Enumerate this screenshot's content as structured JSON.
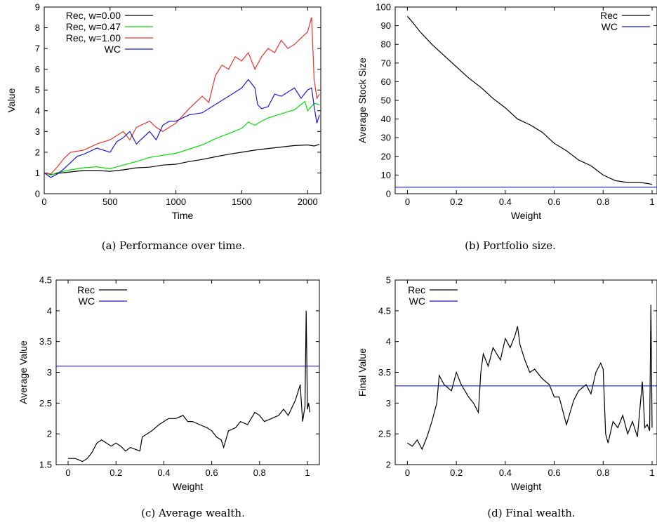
{
  "chart_data": [
    {
      "id": "a",
      "type": "line",
      "caption": "(a)  Performance over time.",
      "xlabel": "Time",
      "ylabel": "Value",
      "xlim": [
        0,
        2100
      ],
      "ylim": [
        0,
        9
      ],
      "xticks": [
        0,
        500,
        1000,
        1500,
        2000
      ],
      "yticks": [
        0,
        1,
        2,
        3,
        4,
        5,
        6,
        7,
        8,
        9
      ],
      "legend": "top-left",
      "series": [
        {
          "name": "Rec, w=0.00",
          "color": "#000000",
          "x": [
            0,
            50,
            100,
            200,
            300,
            400,
            500,
            600,
            700,
            800,
            900,
            1000,
            1100,
            1200,
            1300,
            1400,
            1500,
            1600,
            1700,
            1800,
            1900,
            2000,
            2050,
            2090
          ],
          "y": [
            1.0,
            0.92,
            0.98,
            1.05,
            1.12,
            1.12,
            1.08,
            1.15,
            1.25,
            1.28,
            1.38,
            1.42,
            1.55,
            1.65,
            1.78,
            1.9,
            2.0,
            2.1,
            2.18,
            2.25,
            2.32,
            2.35,
            2.3,
            2.38
          ]
        },
        {
          "name": "Rec, w=0.47",
          "color": "#00e000",
          "x": [
            0,
            50,
            100,
            200,
            300,
            400,
            500,
            600,
            700,
            800,
            900,
            1000,
            1100,
            1200,
            1300,
            1400,
            1500,
            1550,
            1600,
            1650,
            1700,
            1800,
            1900,
            1980,
            2000,
            2050,
            2090
          ],
          "y": [
            1.0,
            0.9,
            1.02,
            1.15,
            1.25,
            1.3,
            1.2,
            1.38,
            1.55,
            1.75,
            1.85,
            1.95,
            2.15,
            2.35,
            2.65,
            2.9,
            3.15,
            3.45,
            3.3,
            3.5,
            3.65,
            3.85,
            4.05,
            4.45,
            4.0,
            4.35,
            4.3
          ]
        },
        {
          "name": "Rec, w=1.00",
          "color": "#e8332b",
          "x": [
            0,
            50,
            100,
            150,
            200,
            300,
            400,
            500,
            600,
            650,
            700,
            800,
            850,
            900,
            950,
            1000,
            1100,
            1200,
            1250,
            1300,
            1350,
            1400,
            1450,
            1500,
            1550,
            1600,
            1650,
            1700,
            1750,
            1800,
            1850,
            1900,
            1950,
            2000,
            2030,
            2050,
            2070,
            2090
          ],
          "y": [
            1.0,
            0.95,
            1.3,
            1.7,
            2.0,
            2.1,
            2.4,
            2.6,
            3.0,
            2.6,
            3.2,
            3.5,
            3.2,
            3.0,
            3.2,
            3.4,
            4.1,
            4.7,
            4.4,
            5.7,
            6.2,
            6.0,
            6.6,
            6.4,
            6.8,
            6.0,
            6.6,
            7.0,
            6.8,
            7.4,
            7.0,
            7.2,
            7.5,
            7.8,
            8.5,
            5.5,
            4.6,
            4.8
          ]
        },
        {
          "name": "WC",
          "color": "#1a1ad8",
          "x": [
            0,
            50,
            100,
            150,
            200,
            250,
            300,
            400,
            500,
            550,
            600,
            650,
            700,
            800,
            850,
            900,
            950,
            1000,
            1100,
            1200,
            1300,
            1400,
            1500,
            1550,
            1600,
            1620,
            1650,
            1700,
            1750,
            1800,
            1850,
            1900,
            1950,
            2000,
            2030,
            2050,
            2070,
            2090
          ],
          "y": [
            1.0,
            0.78,
            0.95,
            1.2,
            1.5,
            1.8,
            1.9,
            2.2,
            2.0,
            2.5,
            2.7,
            3.0,
            2.4,
            3.0,
            2.6,
            3.3,
            3.5,
            3.5,
            3.8,
            3.9,
            4.3,
            4.7,
            5.1,
            5.5,
            5.1,
            4.3,
            4.1,
            4.2,
            4.8,
            4.7,
            4.9,
            5.1,
            4.6,
            5.0,
            5.1,
            4.2,
            3.4,
            3.8
          ]
        }
      ]
    },
    {
      "id": "b",
      "type": "line",
      "caption": "(b)  Portfolio size.",
      "xlabel": "Weight",
      "ylabel": "Average Stock Size",
      "xlim": [
        -0.05,
        1.02
      ],
      "ylim": [
        0,
        100
      ],
      "xticks": [
        0,
        0.2,
        0.4,
        0.6,
        0.8,
        1
      ],
      "xtick_labels": [
        "0",
        "0.2",
        "0.4",
        "0.6",
        "0.8",
        "1"
      ],
      "yticks": [
        0,
        10,
        20,
        30,
        40,
        50,
        60,
        70,
        80,
        90,
        100
      ],
      "legend": "top-right",
      "series": [
        {
          "name": "Rec",
          "color": "#000000",
          "x": [
            0,
            0.02,
            0.05,
            0.1,
            0.15,
            0.2,
            0.25,
            0.3,
            0.35,
            0.4,
            0.45,
            0.5,
            0.55,
            0.6,
            0.65,
            0.7,
            0.75,
            0.8,
            0.85,
            0.9,
            0.95,
            0.98,
            1.0
          ],
          "y": [
            95,
            92,
            87,
            80,
            74,
            68,
            62,
            57,
            51,
            46,
            40,
            37,
            33,
            27,
            23,
            18,
            15,
            10,
            7,
            6,
            6,
            5.5,
            5
          ]
        },
        {
          "name": "WC",
          "color": "#1a1ad8",
          "x": [
            -0.05,
            1.02
          ],
          "y": [
            3.5,
            3.5
          ]
        }
      ]
    },
    {
      "id": "c",
      "type": "line",
      "caption": "(c)  Average wealth.",
      "xlabel": "Weight",
      "ylabel": "Average Value",
      "xlim": [
        -0.05,
        1.05
      ],
      "ylim": [
        1.5,
        4.5
      ],
      "xticks": [
        0,
        0.2,
        0.4,
        0.6,
        0.8,
        1
      ],
      "xtick_labels": [
        "0",
        "0.2",
        "0.4",
        "0.6",
        "0.8",
        "1"
      ],
      "yticks": [
        1.5,
        2,
        2.5,
        3,
        3.5,
        4,
        4.5
      ],
      "ytick_labels": [
        "1.5",
        "2",
        "2.5",
        "3",
        "3.5",
        "4",
        "4.5"
      ],
      "legend": "top-left",
      "series": [
        {
          "name": "Rec",
          "color": "#000000",
          "x": [
            0,
            0.03,
            0.06,
            0.08,
            0.1,
            0.12,
            0.14,
            0.16,
            0.18,
            0.2,
            0.22,
            0.24,
            0.26,
            0.28,
            0.3,
            0.31,
            0.33,
            0.35,
            0.38,
            0.4,
            0.42,
            0.45,
            0.48,
            0.5,
            0.52,
            0.55,
            0.58,
            0.6,
            0.62,
            0.64,
            0.65,
            0.67,
            0.7,
            0.72,
            0.75,
            0.78,
            0.8,
            0.82,
            0.85,
            0.88,
            0.9,
            0.92,
            0.95,
            0.97,
            0.98,
            0.99,
            0.995,
            1.0,
            1.005,
            1.01
          ],
          "y": [
            1.6,
            1.6,
            1.55,
            1.6,
            1.7,
            1.85,
            1.9,
            1.85,
            1.8,
            1.85,
            1.8,
            1.72,
            1.78,
            1.75,
            1.72,
            1.95,
            2.0,
            2.05,
            2.15,
            2.2,
            2.25,
            2.25,
            2.3,
            2.2,
            2.2,
            2.15,
            2.1,
            2.05,
            1.95,
            1.9,
            1.78,
            2.05,
            2.1,
            2.2,
            2.15,
            2.35,
            2.3,
            2.2,
            2.25,
            2.3,
            2.4,
            2.3,
            2.55,
            2.8,
            2.2,
            2.45,
            4.0,
            2.4,
            2.5,
            2.35
          ]
        },
        {
          "name": "WC",
          "color": "#1a1ad8",
          "x": [
            -0.05,
            1.05
          ],
          "y": [
            3.1,
            3.1
          ]
        }
      ]
    },
    {
      "id": "d",
      "type": "line",
      "caption": "(d)  Final wealth.",
      "xlabel": "Weight",
      "ylabel": "Final Value",
      "xlim": [
        -0.05,
        1.02
      ],
      "ylim": [
        2,
        5
      ],
      "xticks": [
        0,
        0.2,
        0.4,
        0.6,
        0.8,
        1
      ],
      "xtick_labels": [
        "0",
        "0.2",
        "0.4",
        "0.6",
        "0.8",
        "1"
      ],
      "yticks": [
        2,
        2.5,
        3,
        3.5,
        4,
        4.5,
        5
      ],
      "ytick_labels": [
        "2",
        "2.5",
        "3",
        "3.5",
        "4",
        "4.5",
        "5"
      ],
      "legend": "top-left",
      "series": [
        {
          "name": "Rec",
          "color": "#000000",
          "x": [
            0,
            0.02,
            0.04,
            0.06,
            0.08,
            0.1,
            0.12,
            0.13,
            0.15,
            0.18,
            0.2,
            0.22,
            0.25,
            0.27,
            0.29,
            0.3,
            0.31,
            0.33,
            0.35,
            0.38,
            0.4,
            0.42,
            0.44,
            0.45,
            0.46,
            0.48,
            0.5,
            0.52,
            0.55,
            0.58,
            0.6,
            0.62,
            0.65,
            0.68,
            0.7,
            0.73,
            0.75,
            0.77,
            0.79,
            0.8,
            0.81,
            0.82,
            0.84,
            0.86,
            0.88,
            0.9,
            0.92,
            0.94,
            0.95,
            0.96,
            0.97,
            0.98,
            0.99,
            0.995,
            1.0
          ],
          "y": [
            2.35,
            2.3,
            2.4,
            2.25,
            2.45,
            2.7,
            3.0,
            3.45,
            3.3,
            3.2,
            3.5,
            3.3,
            3.1,
            3.0,
            2.85,
            3.5,
            3.8,
            3.6,
            3.9,
            3.7,
            4.05,
            3.9,
            4.1,
            4.25,
            3.95,
            3.7,
            3.5,
            3.55,
            3.4,
            3.3,
            3.1,
            3.1,
            2.65,
            3.05,
            3.2,
            3.3,
            3.15,
            3.5,
            3.65,
            3.55,
            2.5,
            2.35,
            2.7,
            2.6,
            2.8,
            2.5,
            2.7,
            2.45,
            2.9,
            3.35,
            2.6,
            2.65,
            2.55,
            4.6,
            2.6
          ]
        },
        {
          "name": "WC",
          "color": "#1a1ad8",
          "x": [
            -0.05,
            1.02
          ],
          "y": [
            3.28,
            3.28
          ]
        }
      ]
    }
  ]
}
